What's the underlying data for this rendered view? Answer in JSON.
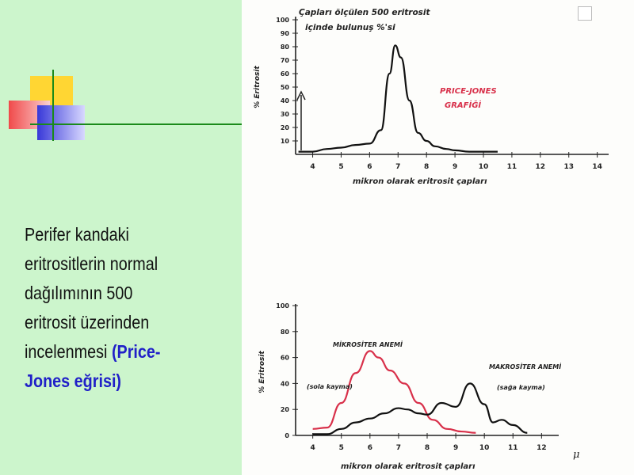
{
  "text": {
    "body": "Perifer kandaki eritrositlerin normal dağılımının 500 eritrosit üzerinden incelenmesi",
    "highlight": "(Price-Jones eğrisi)"
  },
  "colors": {
    "background": "#ccf5cc",
    "highlight": "#2020c8",
    "macro_curve": "#111111",
    "micro_curve": "#d8304a",
    "price_jones_label": "#d8304a"
  },
  "chart_data": [
    {
      "type": "line",
      "title": "Çapları ölçülen 500 eritrosit içinde bulunuş %'si",
      "xlabel": "mikron olarak eritrosit çapları",
      "ylabel": "% Eritrosit",
      "annotation": "PRICE-JONES GRAFİĞİ",
      "x_ticks": [
        "4",
        "5",
        "6",
        "7",
        "8",
        "9",
        "10",
        "11",
        "12",
        "13",
        "14"
      ],
      "y_ticks": [
        "10",
        "20",
        "30",
        "40",
        "50",
        "60",
        "70",
        "80",
        "90",
        "100"
      ],
      "xlim": [
        3.4,
        14.4
      ],
      "ylim": [
        0,
        100
      ],
      "series": [
        {
          "color": "#111111",
          "x": [
            3.5,
            4.0,
            4.5,
            5.0,
            5.5,
            6.0,
            6.4,
            6.7,
            6.9,
            7.1,
            7.4,
            7.7,
            8.0,
            8.3,
            8.7,
            9.0,
            9.5,
            10.0,
            10.5
          ],
          "y": [
            2,
            2,
            4,
            5,
            7,
            8,
            18,
            60,
            81,
            72,
            40,
            16,
            10,
            6,
            4,
            3,
            2,
            2,
            2
          ]
        }
      ]
    },
    {
      "type": "line",
      "xlabel": "mikron olarak eritrosit çapları",
      "ylabel": "% Eritrosit",
      "unit": "μ",
      "x_ticks": [
        "4",
        "5",
        "6",
        "7",
        "8",
        "9",
        "10",
        "11",
        "12"
      ],
      "y_ticks": [
        "0",
        "20",
        "40",
        "60",
        "80",
        "100"
      ],
      "xlim": [
        3.4,
        12.6
      ],
      "ylim": [
        0,
        100
      ],
      "annotations": [
        {
          "text": "MİKROSİTER ANEMİ",
          "sub": "(sola kayma)"
        },
        {
          "text": "MAKROSİTER ANEMİ",
          "sub": "(sağa kayma)"
        }
      ],
      "series": [
        {
          "color": "#d8304a",
          "x": [
            4.0,
            4.5,
            5.0,
            5.5,
            6.0,
            6.3,
            6.7,
            7.2,
            7.7,
            8.2,
            8.7,
            9.2,
            9.7
          ],
          "y": [
            5,
            6,
            25,
            48,
            65,
            60,
            50,
            40,
            25,
            12,
            5,
            3,
            2
          ]
        },
        {
          "color": "#111111",
          "x": [
            4.0,
            4.5,
            5.0,
            5.5,
            6.0,
            6.5,
            7.0,
            7.3,
            7.7,
            8.0,
            8.5,
            9.0,
            9.5,
            10.0,
            10.3,
            10.6,
            11.0,
            11.5
          ],
          "y": [
            1,
            1,
            5,
            10,
            13,
            17,
            21,
            20,
            17,
            16,
            25,
            22,
            40,
            24,
            10,
            12,
            8,
            2
          ]
        }
      ]
    }
  ]
}
